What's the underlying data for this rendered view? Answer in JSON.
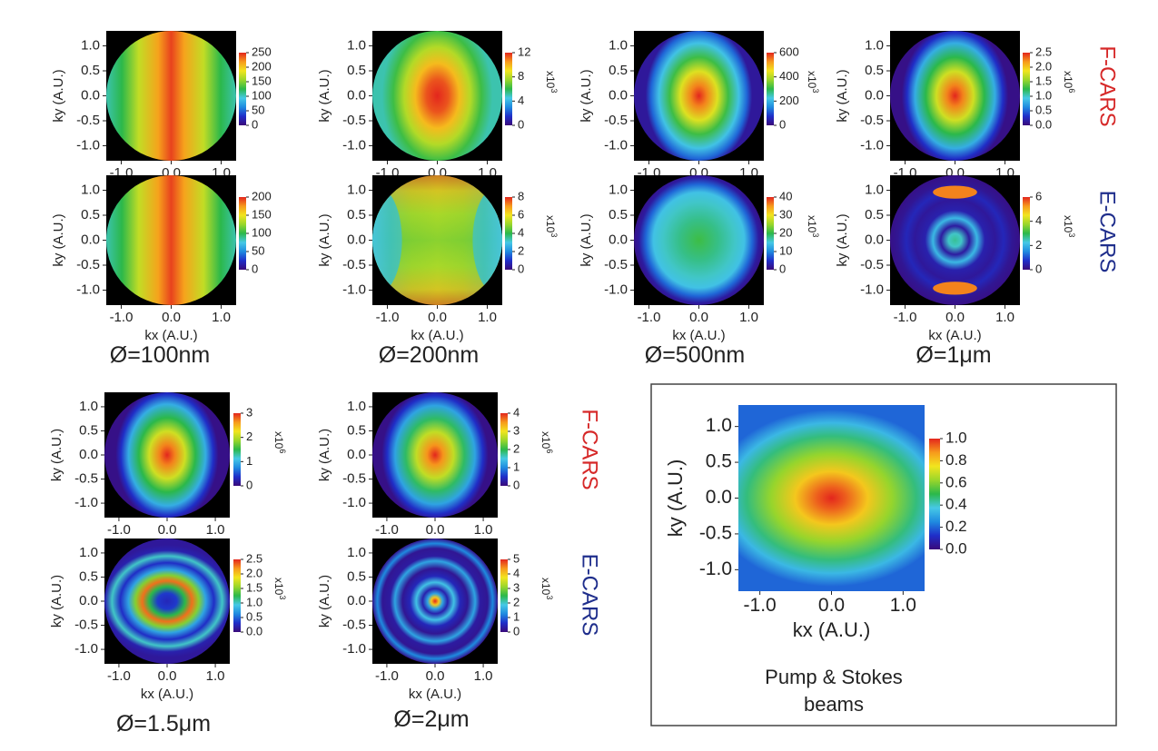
{
  "figure": {
    "side_labels": {
      "f_cars": {
        "text": "F-CARS",
        "color": "#d62828"
      },
      "e_cars": {
        "text": "E-CARS",
        "color": "#1f2e8c"
      }
    },
    "diameters": [
      "Ø=100nm",
      "Ø=200nm",
      "Ø=500nm",
      "Ø=1μm",
      "Ø=1.5μm",
      "Ø=2μm"
    ],
    "axis_labels": {
      "x": "kx (A.U.)",
      "y": "ky (A.U.)"
    },
    "axis_ticks": [
      "-1.0",
      "-0.5",
      "0.0",
      "0.5",
      "1.0"
    ],
    "colormap": [
      "#3a0a7a",
      "#1f2ec9",
      "#1f8be0",
      "#46c9e6",
      "#2bb84a",
      "#9ad62b",
      "#f2e51e",
      "#f79a1c",
      "#e3261d"
    ],
    "caption": {
      "line1": "Pump & Stokes",
      "line2": "beams"
    }
  },
  "chart_data": [
    {
      "type": "heatmap",
      "id": "100nm-F",
      "series": "F-CARS",
      "diameter": "Ø=100nm",
      "pattern": "vertical stripes, max on kx=0",
      "colorbar_ticks": [
        "0",
        "50",
        "100",
        "150",
        "200",
        "250"
      ],
      "colorbar_multiplier": "",
      "xlabel": "",
      "ylabel": "ky (A.U.)"
    },
    {
      "type": "heatmap",
      "id": "200nm-F",
      "series": "F-CARS",
      "diameter": "Ø=200nm",
      "pattern": "elongated vertical ellipse, max at center",
      "colorbar_ticks": [
        "0",
        "4",
        "8",
        "12"
      ],
      "colorbar_multiplier": "x10",
      "colorbar_exponent": "3",
      "xlabel": "",
      "ylabel": "ky (A.U.)"
    },
    {
      "type": "heatmap",
      "id": "500nm-F",
      "series": "F-CARS",
      "diameter": "Ø=500nm",
      "pattern": "vertical ellipse, max at center",
      "colorbar_ticks": [
        "0",
        "200",
        "400",
        "600"
      ],
      "colorbar_multiplier": "x10",
      "colorbar_exponent": "3",
      "xlabel": "",
      "ylabel": "ky (A.U.)"
    },
    {
      "type": "heatmap",
      "id": "1um-F",
      "series": "F-CARS",
      "diameter": "Ø=1μm",
      "pattern": "vertical ellipse, max at center",
      "colorbar_ticks": [
        "0.0",
        "0.5",
        "1.0",
        "1.5",
        "2.0",
        "2.5"
      ],
      "colorbar_multiplier": "x10",
      "colorbar_exponent": "6",
      "xlabel": "",
      "ylabel": "ky (A.U.)"
    },
    {
      "type": "heatmap",
      "id": "100nm-E",
      "series": "E-CARS",
      "diameter": "Ø=100nm",
      "pattern": "vertical stripes, max on kx=0",
      "colorbar_ticks": [
        "0",
        "50",
        "100",
        "150",
        "200"
      ],
      "colorbar_multiplier": "",
      "xlabel": "kx (A.U.)",
      "ylabel": "ky (A.U.)"
    },
    {
      "type": "heatmap",
      "id": "200nm-E",
      "series": "E-CARS",
      "diameter": "Ø=200nm",
      "pattern": "saddle, high at top and bottom, low at left and right",
      "colorbar_ticks": [
        "0",
        "2",
        "4",
        "6",
        "8"
      ],
      "colorbar_multiplier": "x10",
      "colorbar_exponent": "3",
      "xlabel": "kx (A.U.)",
      "ylabel": "ky (A.U.)"
    },
    {
      "type": "heatmap",
      "id": "500nm-E",
      "series": "E-CARS",
      "diameter": "Ø=500nm",
      "pattern": "low center with weak ring",
      "colorbar_ticks": [
        "0",
        "10",
        "20",
        "30",
        "40"
      ],
      "colorbar_multiplier": "x10",
      "colorbar_exponent": "3",
      "xlabel": "kx (A.U.)",
      "ylabel": "ky (A.U.)"
    },
    {
      "type": "heatmap",
      "id": "1um-E",
      "series": "E-CARS",
      "diameter": "Ø=1μm",
      "pattern": "concentric rings with bright lobes top and bottom",
      "colorbar_ticks": [
        "0",
        "2",
        "4",
        "6"
      ],
      "colorbar_multiplier": "x10",
      "colorbar_exponent": "3",
      "xlabel": "kx (A.U.)",
      "ylabel": "ky (A.U.)"
    },
    {
      "type": "heatmap",
      "id": "1.5um-F",
      "series": "F-CARS",
      "diameter": "Ø=1.5μm",
      "pattern": "vertical ellipse, max at center",
      "colorbar_ticks": [
        "0",
        "1",
        "2",
        "3"
      ],
      "colorbar_multiplier": "x10",
      "colorbar_exponent": "6",
      "xlabel": "",
      "ylabel": "ky (A.U.)"
    },
    {
      "type": "heatmap",
      "id": "2um-F",
      "series": "F-CARS",
      "diameter": "Ø=2μm",
      "pattern": "vertical ellipse, max at center",
      "colorbar_ticks": [
        "0",
        "1",
        "2",
        "3",
        "4"
      ],
      "colorbar_multiplier": "x10",
      "colorbar_exponent": "6",
      "xlabel": "",
      "ylabel": "ky (A.U.)"
    },
    {
      "type": "heatmap",
      "id": "1.5um-E",
      "series": "E-CARS",
      "diameter": "Ø=1.5μm",
      "pattern": "bright ring around low center, outer arcs",
      "colorbar_ticks": [
        "0.0",
        "0.5",
        "1.0",
        "1.5",
        "2.0",
        "2.5"
      ],
      "colorbar_multiplier": "x10",
      "colorbar_exponent": "3",
      "xlabel": "kx (A.U.)",
      "ylabel": "ky (A.U.)"
    },
    {
      "type": "heatmap",
      "id": "2um-E",
      "series": "E-CARS",
      "diameter": "Ø=2μm",
      "pattern": "bright center spot with concentric rings",
      "colorbar_ticks": [
        "0",
        "1",
        "2",
        "3",
        "4",
        "5"
      ],
      "colorbar_multiplier": "x10",
      "colorbar_exponent": "3",
      "xlabel": "kx (A.U.)",
      "ylabel": "ky (A.U.)"
    },
    {
      "type": "heatmap",
      "id": "pump-stokes",
      "series": "Pump & Stokes beams",
      "pattern": "horizontal gaussian ellipse, max at center",
      "colorbar_ticks": [
        "0.0",
        "0.2",
        "0.4",
        "0.6",
        "0.8",
        "1.0"
      ],
      "colorbar_multiplier": "",
      "xlabel": "kx (A.U.)",
      "ylabel": "ky (A.U.)",
      "xlim": [
        -1.3,
        1.3
      ],
      "ylim": [
        -1.3,
        1.3
      ]
    }
  ]
}
